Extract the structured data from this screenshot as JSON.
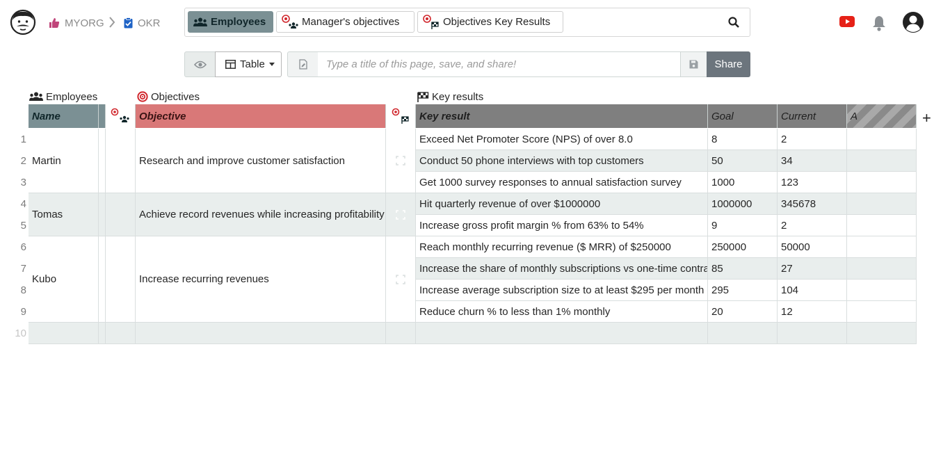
{
  "header": {
    "breadcrumb": {
      "org": "MYORG",
      "doc": "OKR"
    },
    "pages": [
      {
        "label": "Employees",
        "active": true
      },
      {
        "label": "Manager's objectives",
        "active": false
      },
      {
        "label": "Objectives Key Results",
        "active": false
      }
    ]
  },
  "toolbar": {
    "view_label": "Table",
    "title_placeholder": "Type a title of this page, save, and share!",
    "share_label": "Share"
  },
  "sections": {
    "employees": "Employees",
    "objectives": "Objectives",
    "key_results": "Key results"
  },
  "columns": {
    "name": "Name",
    "objective": "Objective",
    "key_result": "Key result",
    "goal": "Goal",
    "current": "Current",
    "add": "A"
  },
  "employees": [
    {
      "name": "Martin",
      "rows": [
        1,
        3
      ]
    },
    {
      "name": "Tomas",
      "rows": [
        4,
        5
      ]
    },
    {
      "name": "Kubo",
      "rows": [
        6,
        9
      ]
    }
  ],
  "objectives": [
    {
      "objective": "Research and improve customer satisfaction"
    },
    {
      "objective": "Achieve record revenues while increasing profitability"
    },
    {
      "objective": "Increase recurring revenues"
    }
  ],
  "key_results": [
    {
      "row": "1",
      "kr": "Exceed Net Promoter Score (NPS) of over 8.0",
      "goal": "8",
      "current": "2"
    },
    {
      "row": "2",
      "kr": "Conduct 50 phone interviews with top customers",
      "goal": "50",
      "current": "34"
    },
    {
      "row": "3",
      "kr": "Get 1000 survey responses to annual satisfaction survey",
      "goal": "1000",
      "current": "123"
    },
    {
      "row": "4",
      "kr": "Hit quarterly revenue of over $1000000",
      "goal": "1000000",
      "current": "345678"
    },
    {
      "row": "5",
      "kr": "Increase gross profit margin % from 63% to 54%",
      "goal": "9",
      "current": "2"
    },
    {
      "row": "6",
      "kr": "Reach monthly recurring revenue ($ MRR) of $250000",
      "goal": "250000",
      "current": "50000"
    },
    {
      "row": "7",
      "kr": "Increase the share of monthly subscriptions vs one-time contra",
      "goal": "85",
      "current": "27"
    },
    {
      "row": "8",
      "kr": "Increase average subscription size to at least $295 per month",
      "goal": "295",
      "current": "104"
    },
    {
      "row": "9",
      "kr": "Reduce churn % to less than 1% monthly",
      "goal": "20",
      "current": "12"
    }
  ],
  "new_row_number": "10",
  "colors": {
    "active_tab": "#7b9094",
    "employees_header": "#7b9094",
    "objectives_header": "#d97878",
    "key_results_header": "#7f7f7f",
    "row_alt": "#e9eeed",
    "share_button": "#6c757d",
    "accent_red": "#d0262c"
  }
}
